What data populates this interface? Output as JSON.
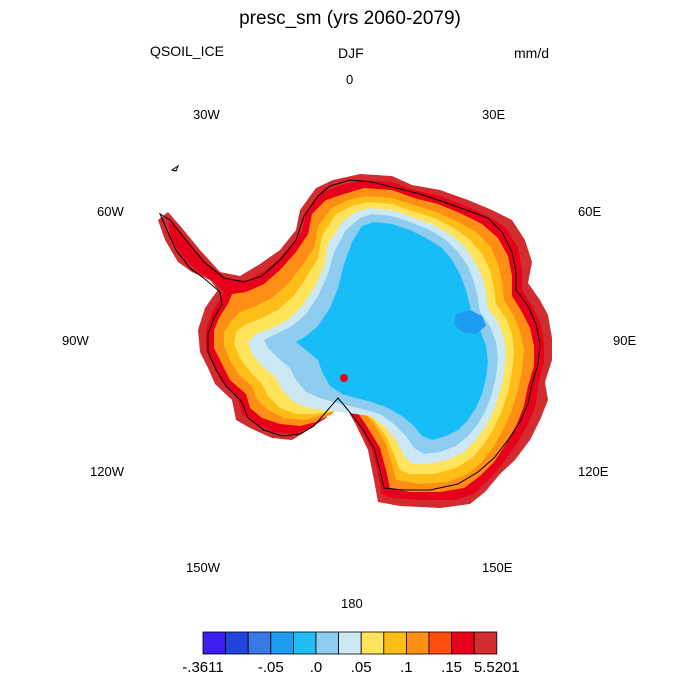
{
  "title": "presc_sm (yrs 2060-2079)",
  "left_label": "QSOIL_ICE",
  "center_label": "DJF",
  "right_label": "mm/d",
  "longitude_labels": {
    "l0": "0",
    "l30e": "30E",
    "l60e": "60E",
    "l90e": "90E",
    "l120e": "120E",
    "l150e": "150E",
    "l180": "180",
    "l150w": "150W",
    "l120w": "120W",
    "l90w": "90W",
    "l60w": "60W",
    "l30w": "30W"
  },
  "colorbar": {
    "colors": [
      "#3a1ff0",
      "#2244dc",
      "#3a78e6",
      "#1e9cf0",
      "#22bdf6",
      "#8ecdf0",
      "#cce8f4",
      "#ffe35a",
      "#ffbd18",
      "#ff8e14",
      "#ff4e0c",
      "#e8001a",
      "#d22c30"
    ],
    "tick_labels": [
      "-.3611",
      "-.05",
      ".0",
      ".05",
      ".1",
      ".15",
      "5.5201"
    ]
  },
  "map": {
    "projection": "south polar stereographic",
    "coastline_color": "#000000",
    "interior_color": "#18bdf8",
    "ice_shelf_color": "#cce8f4"
  }
}
